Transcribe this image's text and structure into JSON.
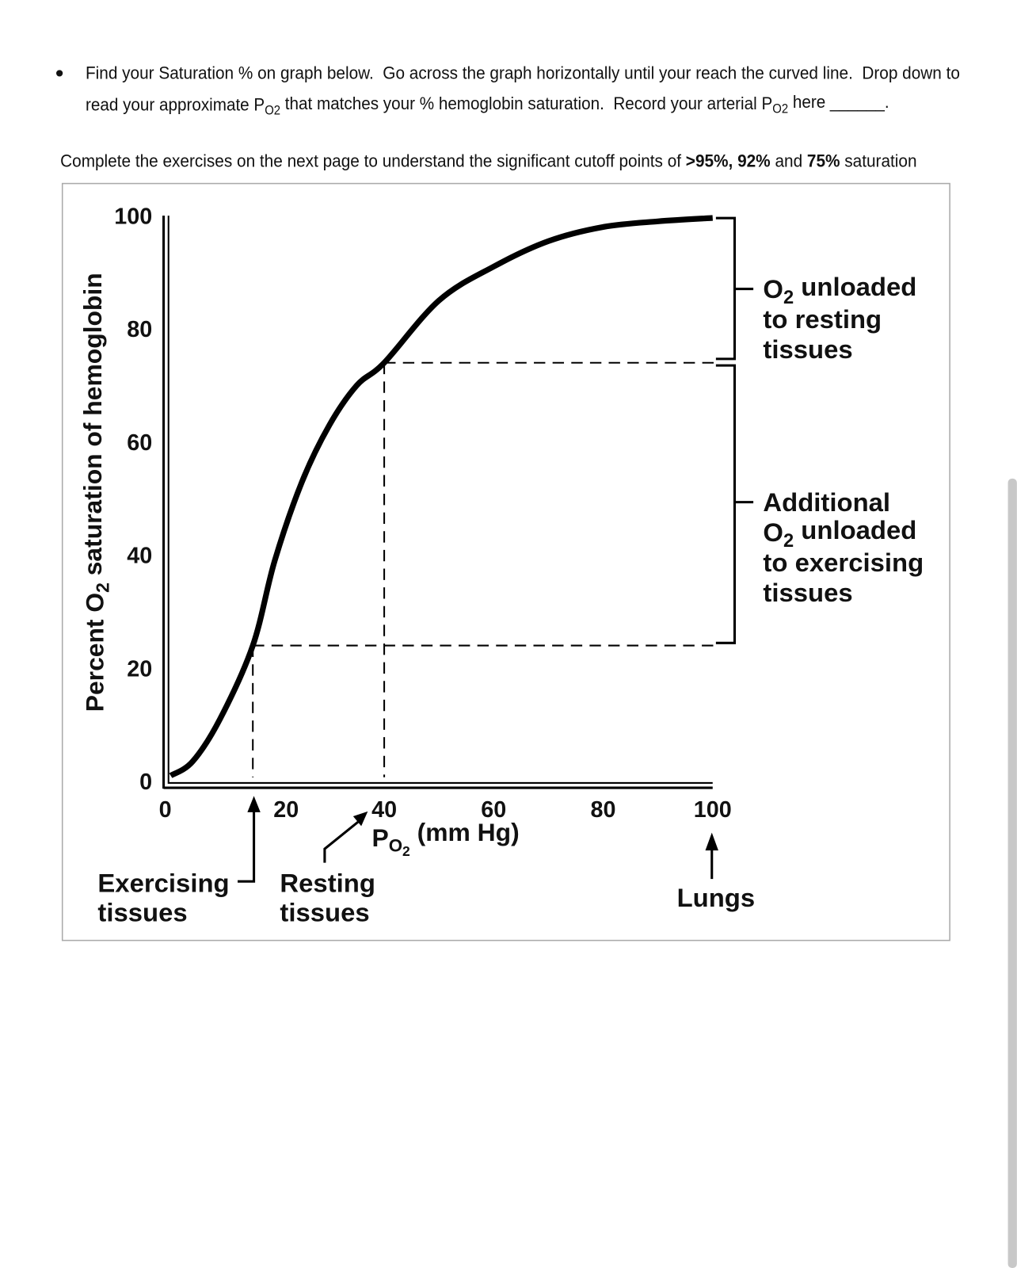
{
  "bullet": {
    "line1": "Find your Saturation % on graph below.  Go across the graph horizontally until your reach the curved line.  Drop down to",
    "line2": [
      "read your approximate P",
      "O2",
      " that matches your % hemoglobin saturation.  Record your arterial P",
      "O2",
      " here ______."
    ]
  },
  "note": [
    "Complete the exercises on the next page to understand the significant cutoff points of ",
    ">95%, 92%",
    " and ",
    "75%",
    " saturation"
  ],
  "chart_data": {
    "type": "line",
    "x_label": [
      "P",
      "O",
      "2",
      " (mm Hg)"
    ],
    "y_label": [
      "Percent O",
      "2",
      " saturation of hemoglobin"
    ],
    "x": [
      1,
      5,
      10,
      16,
      20,
      25,
      30,
      35,
      40,
      50,
      60,
      70,
      80,
      90,
      100
    ],
    "series": [
      {
        "color": "#000000",
        "values": [
          1,
          3.5,
          11,
          24,
          39,
          53,
          63,
          70,
          74,
          85,
          91,
          95.5,
          98,
          99,
          99.6
        ]
      }
    ],
    "xlim": [
      0,
      100
    ],
    "ylim": [
      0,
      100
    ],
    "xticks": [
      0,
      20,
      40,
      60,
      80,
      100
    ],
    "yticks": [
      0,
      20,
      40,
      60,
      80,
      100
    ],
    "annotations": {
      "resting": [
        [
          "O",
          "2",
          " unloaded"
        ],
        "to resting",
        "tissues"
      ],
      "exercising": [
        "Additional",
        [
          "O",
          "2",
          " unloaded"
        ],
        "to exercising",
        "tissues"
      ]
    },
    "pointers": {
      "exercising": [
        "Exercising",
        "tissues"
      ],
      "resting": [
        "Resting",
        "tissues"
      ],
      "lungs": "Lungs"
    }
  }
}
